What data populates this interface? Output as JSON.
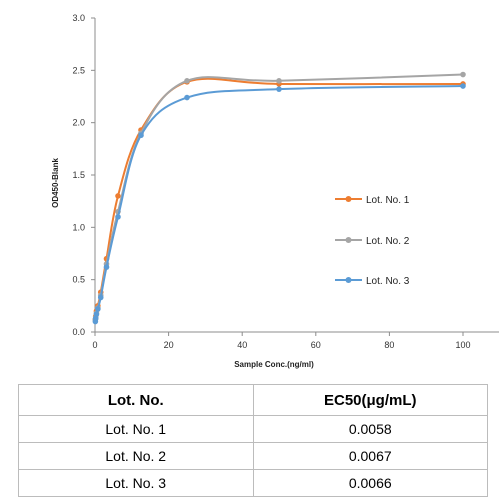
{
  "chart_data": {
    "type": "line",
    "xlabel": "Sample Conc.(ng/ml)",
    "ylabel": "OD450-Blank",
    "xlim": [
      0,
      100
    ],
    "ylim": [
      0,
      3.0
    ],
    "x_ticks": [
      "0",
      "20",
      "40",
      "60",
      "80",
      "100"
    ],
    "y_ticks": [
      "0.0",
      "0.5",
      "1.0",
      "1.5",
      "2.0",
      "2.5",
      "3.0"
    ],
    "grid": false,
    "legend_position": "right",
    "series": [
      {
        "name": "Lot. No. 1",
        "color": "#ed7d31",
        "x": [
          0.098,
          0.195,
          0.39,
          0.78,
          1.56,
          3.125,
          6.25,
          12.5,
          25,
          50,
          100
        ],
        "y": [
          0.12,
          0.15,
          0.2,
          0.25,
          0.38,
          0.7,
          1.3,
          1.93,
          2.39,
          2.37,
          2.37
        ]
      },
      {
        "name": "Lot. No. 2",
        "color": "#a5a5a5",
        "x": [
          0.098,
          0.195,
          0.39,
          0.78,
          1.56,
          3.125,
          6.25,
          12.5,
          25,
          50,
          100
        ],
        "y": [
          0.12,
          0.14,
          0.18,
          0.23,
          0.35,
          0.65,
          1.15,
          1.9,
          2.4,
          2.4,
          2.46
        ]
      },
      {
        "name": "Lot. No. 3",
        "color": "#5b9bd5",
        "x": [
          0.098,
          0.195,
          0.39,
          0.78,
          1.56,
          3.125,
          6.25,
          12.5,
          25,
          50,
          100
        ],
        "y": [
          0.1,
          0.13,
          0.17,
          0.22,
          0.33,
          0.62,
          1.1,
          1.88,
          2.24,
          2.32,
          2.35
        ]
      }
    ]
  },
  "table": {
    "headers": [
      "Lot. No.",
      "EC50(μg/mL)"
    ],
    "rows": [
      [
        "Lot. No. 1",
        "0.0058"
      ],
      [
        "Lot. No. 2",
        "0.0067"
      ],
      [
        "Lot. No. 3",
        "0.0066"
      ]
    ]
  }
}
